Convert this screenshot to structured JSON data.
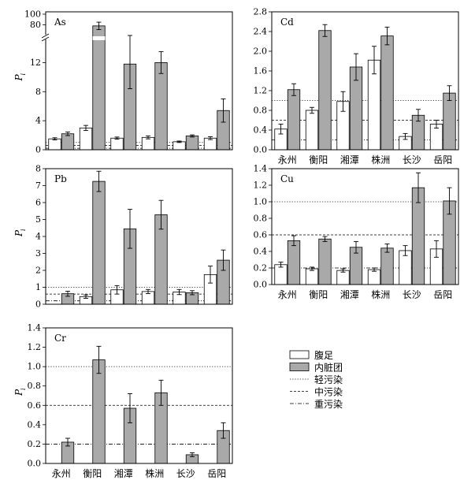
{
  "chart_data": [
    {
      "type": "bar",
      "title": "As",
      "ylabel": "P",
      "ylabel_sub": "i",
      "categories": [
        "永州",
        "衡阳",
        "湘潭",
        "株洲",
        "长沙",
        "岳阳"
      ],
      "ylim": [
        0,
        16
      ],
      "yticks": [
        0,
        4,
        8,
        12
      ],
      "y_break": {
        "after": 14,
        "upper_ticks": [
          80,
          100
        ]
      },
      "series": [
        {
          "name": "腹足",
          "values": [
            1.5,
            3.0,
            1.6,
            1.7,
            1.1,
            1.6
          ],
          "errors": [
            0.15,
            0.35,
            0.15,
            0.2,
            0.1,
            0.2
          ]
        },
        {
          "name": "内脏团",
          "values": [
            2.2,
            78,
            11.8,
            12.0,
            1.9,
            5.4
          ],
          "errors": [
            0.25,
            7,
            3.4,
            1.5,
            0.15,
            1.6
          ]
        }
      ],
      "thresholds": [
        {
          "name": "轻污染",
          "value": 1.0
        },
        {
          "name": "中污染",
          "value": 0.6
        },
        {
          "name": "重污染",
          "value": 0.2
        }
      ]
    },
    {
      "type": "bar",
      "title": "Cd",
      "ylabel": "",
      "categories": [
        "永州",
        "衡阳",
        "湘潭",
        "株洲",
        "长沙",
        "岳阳"
      ],
      "ylim": [
        0,
        2.8
      ],
      "yticks": [
        0,
        0.4,
        0.8,
        1.2,
        1.6,
        2.0,
        2.4,
        2.8
      ],
      "series": [
        {
          "name": "腹足",
          "values": [
            0.42,
            0.8,
            0.98,
            1.82,
            0.27,
            0.52
          ],
          "errors": [
            0.1,
            0.06,
            0.2,
            0.28,
            0.06,
            0.08
          ]
        },
        {
          "name": "内脏团",
          "values": [
            1.22,
            2.42,
            1.68,
            2.31,
            0.7,
            1.15
          ],
          "errors": [
            0.12,
            0.12,
            0.27,
            0.18,
            0.12,
            0.15
          ]
        }
      ],
      "thresholds": [
        {
          "name": "轻污染",
          "value": 1.0
        },
        {
          "name": "中污染",
          "value": 0.6
        },
        {
          "name": "重污染",
          "value": 0.2
        }
      ]
    },
    {
      "type": "bar",
      "title": "Pb",
      "ylabel": "P",
      "ylabel_sub": "i",
      "categories": [
        "永州",
        "衡阳",
        "湘潭",
        "株洲",
        "长沙",
        "岳阳"
      ],
      "ylim": [
        0,
        8
      ],
      "yticks": [
        0,
        1,
        2,
        3,
        4,
        5,
        6,
        7,
        8
      ],
      "series": [
        {
          "name": "腹足",
          "values": [
            0,
            0.45,
            0.85,
            0.75,
            0.72,
            1.75
          ],
          "errors": [
            0,
            0.1,
            0.25,
            0.12,
            0.15,
            0.5
          ]
        },
        {
          "name": "内脏团",
          "values": [
            0.62,
            7.25,
            4.45,
            5.28,
            0.68,
            2.6
          ],
          "errors": [
            0.15,
            0.6,
            1.15,
            0.85,
            0.12,
            0.6
          ]
        }
      ],
      "thresholds": [
        {
          "name": "轻污染",
          "value": 1.0
        },
        {
          "name": "中污染",
          "value": 0.6
        },
        {
          "name": "重污染",
          "value": 0.2
        }
      ]
    },
    {
      "type": "bar",
      "title": "Cu",
      "ylabel": "",
      "categories": [
        "永州",
        "衡阳",
        "湘潭",
        "株洲",
        "长沙",
        "岳阳"
      ],
      "ylim": [
        0,
        1.4
      ],
      "yticks": [
        0,
        0.2,
        0.4,
        0.6,
        0.8,
        1.0,
        1.2,
        1.4
      ],
      "series": [
        {
          "name": "腹足",
          "values": [
            0.24,
            0.19,
            0.17,
            0.18,
            0.41,
            0.43
          ],
          "errors": [
            0.03,
            0.02,
            0.02,
            0.02,
            0.06,
            0.1
          ]
        },
        {
          "name": "内脏团",
          "values": [
            0.53,
            0.55,
            0.45,
            0.44,
            1.17,
            1.01
          ],
          "errors": [
            0.06,
            0.03,
            0.07,
            0.05,
            0.18,
            0.16
          ]
        }
      ],
      "thresholds": [
        {
          "name": "轻污染",
          "value": 1.0
        },
        {
          "name": "中污染",
          "value": 0.6
        },
        {
          "name": "重污染",
          "value": 0.2
        }
      ]
    },
    {
      "type": "bar",
      "title": "Cr",
      "ylabel": "P",
      "ylabel_sub": "i",
      "categories": [
        "永州",
        "衡阳",
        "湘潭",
        "株洲",
        "长沙",
        "岳阳"
      ],
      "ylim": [
        0,
        1.4
      ],
      "yticks": [
        0,
        0.2,
        0.4,
        0.6,
        0.8,
        1.0,
        1.2,
        1.4
      ],
      "series": [
        {
          "name": "腹足",
          "values": [
            0,
            0,
            0,
            0,
            0,
            0
          ],
          "errors": [
            0,
            0,
            0,
            0,
            0,
            0
          ]
        },
        {
          "name": "内脏团",
          "values": [
            0.22,
            1.07,
            0.57,
            0.73,
            0.09,
            0.34
          ],
          "errors": [
            0.04,
            0.14,
            0.15,
            0.13,
            0.02,
            0.08
          ]
        }
      ],
      "thresholds": [
        {
          "name": "轻污染",
          "value": 1.0
        },
        {
          "name": "中污染",
          "value": 0.6
        },
        {
          "name": "重污染",
          "value": 0.2
        }
      ]
    }
  ],
  "legend": {
    "items": [
      {
        "label": "腹足",
        "kind": "bar",
        "fill": "#ffffff"
      },
      {
        "label": "内脏团",
        "kind": "bar",
        "fill": "#a9a9a9"
      },
      {
        "label": "轻污染",
        "kind": "line",
        "dash": "dotted"
      },
      {
        "label": "中污染",
        "kind": "line",
        "dash": "dashed"
      },
      {
        "label": "重污染",
        "kind": "line",
        "dash": "dashdot"
      }
    ]
  },
  "colors": {
    "foot": "#ffffff",
    "viscera": "#a9a9a9",
    "line": "#000000"
  }
}
